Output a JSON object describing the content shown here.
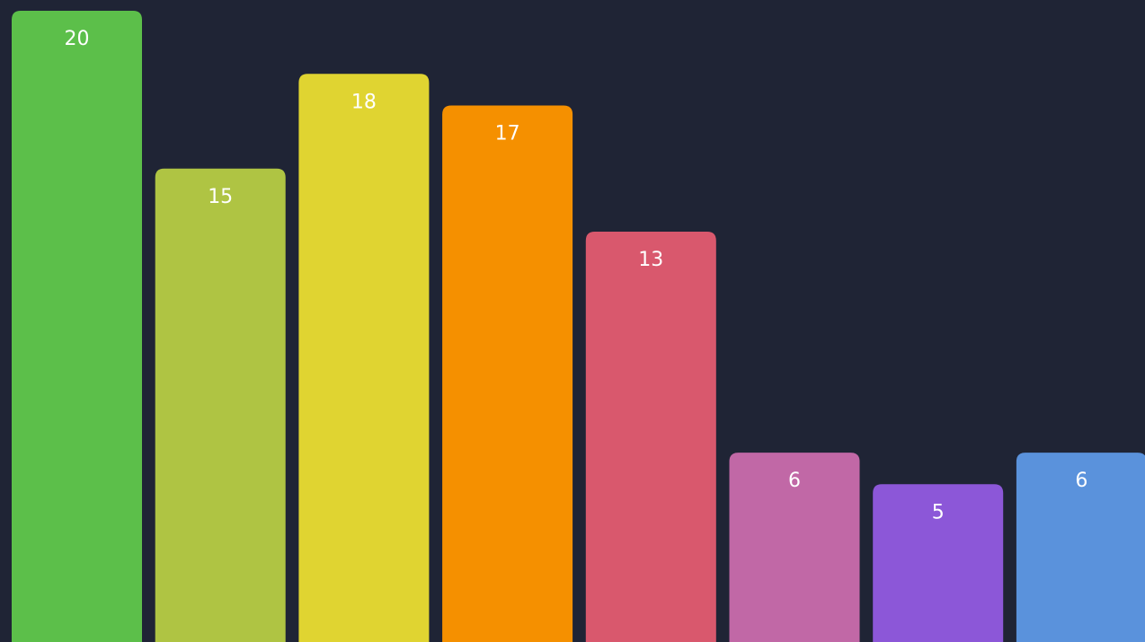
{
  "chart_data": {
    "type": "bar",
    "title": "",
    "xlabel": "",
    "ylabel": "",
    "ylim": [
      0,
      20
    ],
    "grid": false,
    "legend": "none",
    "background_color": "#1f2435",
    "label_color": "#ffffff",
    "series": [
      {
        "values": [
          20,
          15,
          18,
          17,
          13,
          6,
          5,
          6
        ],
        "labels": [
          "20",
          "15",
          "18",
          "17",
          "13",
          "6",
          "5",
          "6"
        ],
        "colors": [
          "#5cbf4a",
          "#afc443",
          "#e0d431",
          "#f59000",
          "#d9586d",
          "#c168a6",
          "#8c57d8",
          "#5a92dc"
        ]
      }
    ]
  }
}
